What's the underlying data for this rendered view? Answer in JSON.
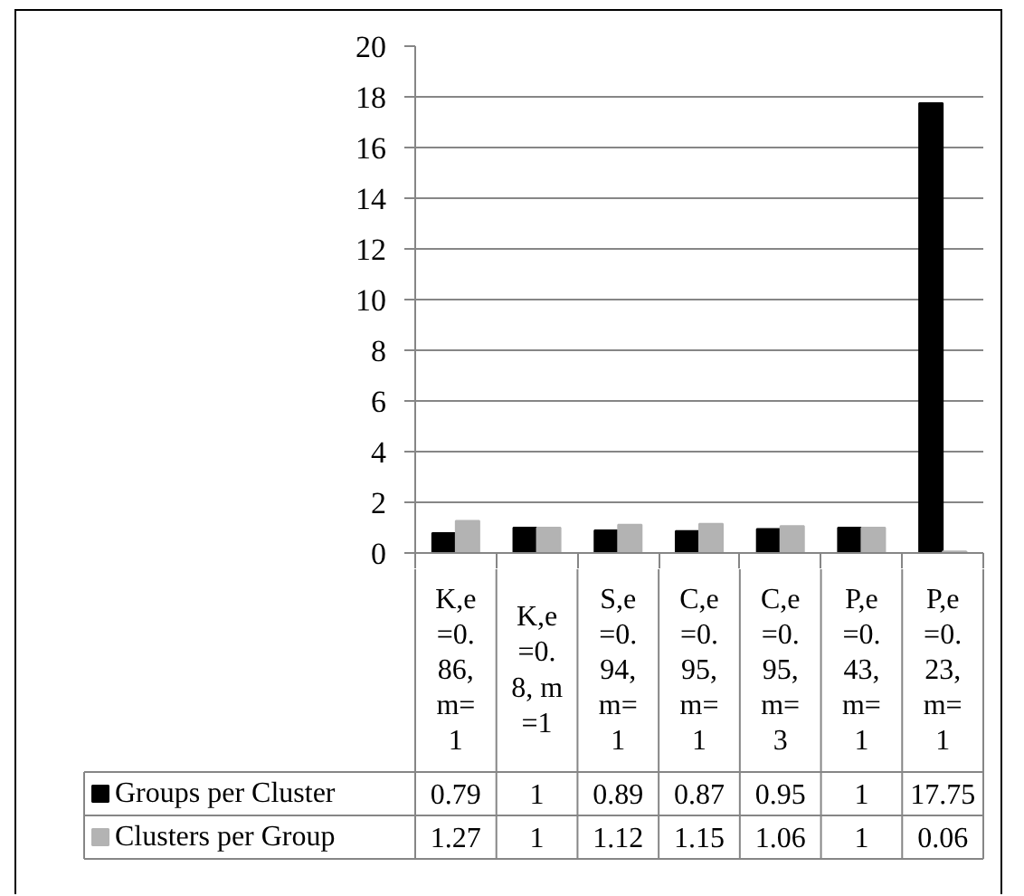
{
  "chart_data": {
    "type": "bar",
    "categories": [
      "K,e=0.86, m=1",
      "K,e=0.8, m=1",
      "S,e=0.94, m=1",
      "C,e=0.95, m=1",
      "C,e=0.95, m=3",
      "P,e=0.43, m=1",
      "P,e=0.23, m=1"
    ],
    "series": [
      {
        "name": "Groups per Cluster",
        "color": "#000000",
        "values": [
          0.79,
          1,
          0.89,
          0.87,
          0.95,
          1,
          17.75
        ]
      },
      {
        "name": "Clusters per Group",
        "color": "#b3b3b3",
        "values": [
          1.27,
          1,
          1.12,
          1.15,
          1.06,
          1,
          0.06
        ]
      }
    ],
    "ylim": [
      0,
      20
    ],
    "yticks": [
      0,
      2,
      4,
      6,
      8,
      10,
      12,
      14,
      16,
      18,
      20
    ],
    "grid": "y",
    "legend": "bottom left",
    "data_labels": true
  }
}
